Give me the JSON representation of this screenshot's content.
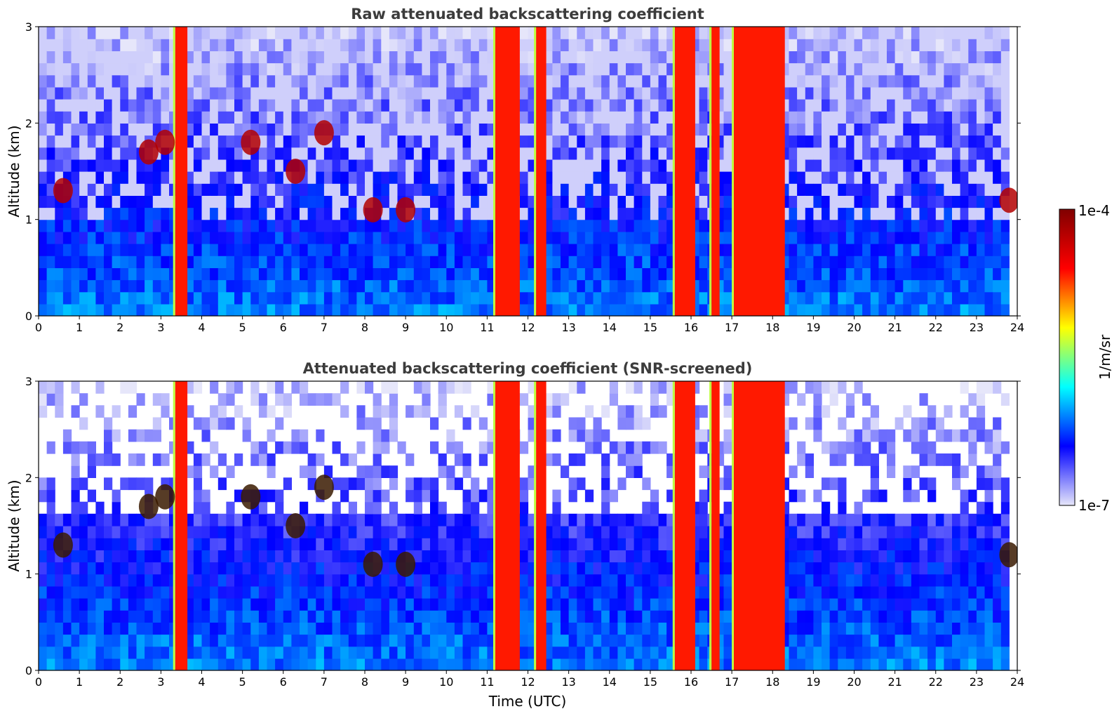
{
  "colors": {
    "colormap": [
      "#e6e6fa",
      "#0000ff",
      "#00ffff",
      "#ffff00",
      "#ff0000",
      "#800000"
    ],
    "title_color": "#3c3c3c",
    "background": "#ffffff"
  },
  "chart_data": [
    {
      "type": "heatmap",
      "title": "Raw attenuated backscattering coefficient",
      "xlabel": "",
      "ylabel": "Altitude (km)",
      "xlim": [
        0,
        24
      ],
      "ylim": [
        0,
        3
      ],
      "x_ticks": [
        "0",
        "1",
        "2",
        "3",
        "4",
        "5",
        "6",
        "7",
        "8",
        "9",
        "10",
        "11",
        "12",
        "13",
        "14",
        "15",
        "16",
        "17",
        "18",
        "19",
        "20",
        "21",
        "22",
        "23",
        "24"
      ],
      "y_ticks": [
        "0",
        "1",
        "2",
        "3"
      ],
      "screened": false,
      "value_scale": "log",
      "vmin": 1e-07,
      "vmax": 0.0001,
      "precipitation_periods_utc": [
        [
          3.35,
          3.65
        ],
        [
          11.2,
          11.8
        ],
        [
          12.2,
          12.45
        ],
        [
          15.6,
          16.1
        ],
        [
          16.5,
          16.7
        ],
        [
          17.05,
          18.3
        ]
      ],
      "cloud_patches": [
        {
          "time_utc": 0.6,
          "altitude_km": 1.3
        },
        {
          "time_utc": 2.7,
          "altitude_km": 1.7
        },
        {
          "time_utc": 3.1,
          "altitude_km": 1.8
        },
        {
          "time_utc": 5.2,
          "altitude_km": 1.8
        },
        {
          "time_utc": 6.3,
          "altitude_km": 1.5
        },
        {
          "time_utc": 7.0,
          "altitude_km": 1.9
        },
        {
          "time_utc": 8.2,
          "altitude_km": 1.1
        },
        {
          "time_utc": 9.0,
          "altitude_km": 1.1
        },
        {
          "time_utc": 23.8,
          "altitude_km": 1.2
        }
      ]
    },
    {
      "type": "heatmap",
      "title": "Attenuated backscattering coefficient (SNR-screened)",
      "xlabel": "Time (UTC)",
      "ylabel": "Altitude (km)",
      "xlim": [
        0,
        24
      ],
      "ylim": [
        0,
        3
      ],
      "x_ticks": [
        "0",
        "1",
        "2",
        "3",
        "4",
        "5",
        "6",
        "7",
        "8",
        "9",
        "10",
        "11",
        "12",
        "13",
        "14",
        "15",
        "16",
        "17",
        "18",
        "19",
        "20",
        "21",
        "22",
        "23",
        "24"
      ],
      "y_ticks": [
        "0",
        "1",
        "2",
        "3"
      ],
      "screened": true,
      "value_scale": "log",
      "vmin": 1e-07,
      "vmax": 0.0001,
      "precipitation_periods_utc": [
        [
          3.35,
          3.65
        ],
        [
          11.2,
          11.8
        ],
        [
          12.2,
          12.45
        ],
        [
          15.6,
          16.1
        ],
        [
          16.5,
          16.7
        ],
        [
          17.05,
          18.3
        ]
      ],
      "cloud_patches": [
        {
          "time_utc": 0.6,
          "altitude_km": 1.3
        },
        {
          "time_utc": 2.7,
          "altitude_km": 1.7
        },
        {
          "time_utc": 3.1,
          "altitude_km": 1.8
        },
        {
          "time_utc": 5.2,
          "altitude_km": 1.8
        },
        {
          "time_utc": 6.3,
          "altitude_km": 1.5
        },
        {
          "time_utc": 7.0,
          "altitude_km": 1.9
        },
        {
          "time_utc": 8.2,
          "altitude_km": 1.1
        },
        {
          "time_utc": 9.0,
          "altitude_km": 1.1
        },
        {
          "time_utc": 23.8,
          "altitude_km": 1.2
        }
      ]
    }
  ],
  "colorbar": {
    "label": "1/m/sr",
    "max_label": "1e-4",
    "min_label": "1e-7"
  }
}
